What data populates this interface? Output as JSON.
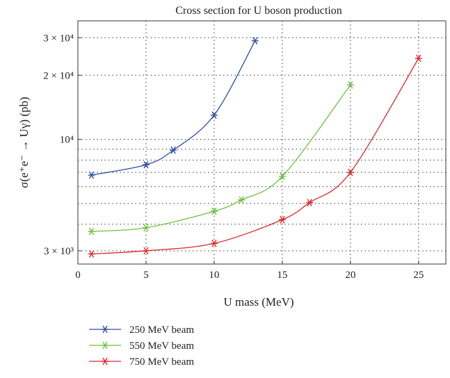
{
  "chart_data": {
    "type": "line",
    "title": "Cross section for U boson production",
    "xlabel": "U mass (MeV)",
    "ylabel": "σ(e⁺e⁻ → Uγ) (pb)",
    "xlim": [
      0,
      27
    ],
    "ylim": [
      2600,
      36000
    ],
    "yscale": "log",
    "grid": true,
    "legend_position": "below",
    "x_ticks": [
      0,
      5,
      10,
      15,
      20,
      25
    ],
    "x_tick_labels": [
      "0",
      "5",
      "10",
      "15",
      "20",
      "25"
    ],
    "y_ticks": [
      3000,
      10000,
      20000,
      30000
    ],
    "y_tick_labels": [
      "3 × 10³",
      "10⁴",
      "2 × 10⁴",
      "3 × 10⁴"
    ],
    "series": [
      {
        "name": "250 MeV beam",
        "color": "#2b4ea3",
        "x": [
          1,
          5,
          7,
          10,
          13
        ],
        "y": [
          6800,
          7600,
          8900,
          13000,
          29000
        ]
      },
      {
        "name": "550 MeV beam",
        "color": "#6ac33c",
        "x": [
          1,
          5,
          10,
          12,
          15,
          20
        ],
        "y": [
          3700,
          3850,
          4600,
          5200,
          6700,
          18000
        ]
      },
      {
        "name": "750 MeV beam",
        "color": "#e0262b",
        "x": [
          1,
          5,
          10,
          15,
          17,
          20,
          25
        ],
        "y": [
          2900,
          3000,
          3250,
          4200,
          5050,
          7000,
          24000
        ]
      }
    ]
  }
}
